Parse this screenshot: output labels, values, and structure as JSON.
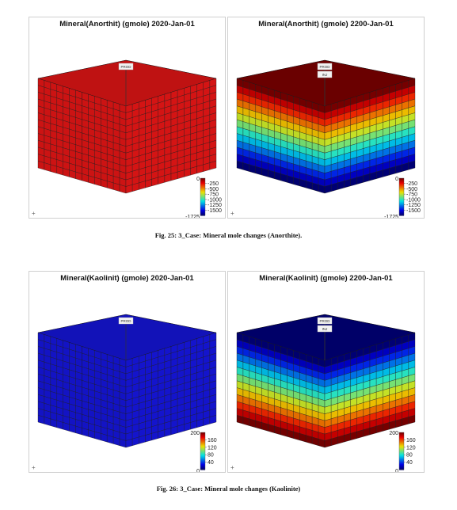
{
  "figures": [
    {
      "caption": "Fig. 25: 3_Case: Mineral mole changes (Anorthite).",
      "panels": [
        {
          "title": "Mineral(Anorthit) (gmole)  2020-Jan-01",
          "mode": "uniform",
          "cube_color": "#d41414",
          "wells": [
            "PROD"
          ],
          "colorbar": {
            "max_label": "0",
            "min_label": "-1725",
            "ticks": [
              "-250",
              "-500",
              "-750",
              "-1000",
              "-1250",
              "-1500"
            ],
            "direction": "red-top"
          }
        },
        {
          "title": "Mineral(Anorthit) (gmole)  2200-Jan-01",
          "mode": "layered",
          "layer_order": "red-top",
          "wells": [
            "PROD",
            "INJ"
          ],
          "colorbar": {
            "max_label": "0",
            "min_label": "-1725",
            "ticks": [
              "-250",
              "-500",
              "-750",
              "-1000",
              "-1250",
              "-1500"
            ],
            "direction": "red-top"
          }
        }
      ]
    },
    {
      "caption": "Fig. 26: 3_Case: Mineral mole changes (Kaolinite)",
      "panels": [
        {
          "title": "Mineral(Kaolinit) (gmole)  2020-Jan-01",
          "mode": "uniform",
          "cube_color": "#1414cc",
          "wells": [
            "PROD"
          ],
          "colorbar": {
            "max_label": "200",
            "min_label": "0",
            "ticks": [
              "160",
              "120",
              "80",
              "40"
            ],
            "direction": "red-top"
          }
        },
        {
          "title": "Mineral(Kaolinit) (gmole)  2200-Jan-01",
          "mode": "layered",
          "layer_order": "blue-top",
          "wells": [
            "PROD",
            "INJ"
          ],
          "colorbar": {
            "max_label": "200",
            "min_label": "0",
            "ticks": [
              "160",
              "120",
              "80",
              "40"
            ],
            "direction": "red-top"
          }
        }
      ]
    }
  ],
  "axis_marker": "+"
}
